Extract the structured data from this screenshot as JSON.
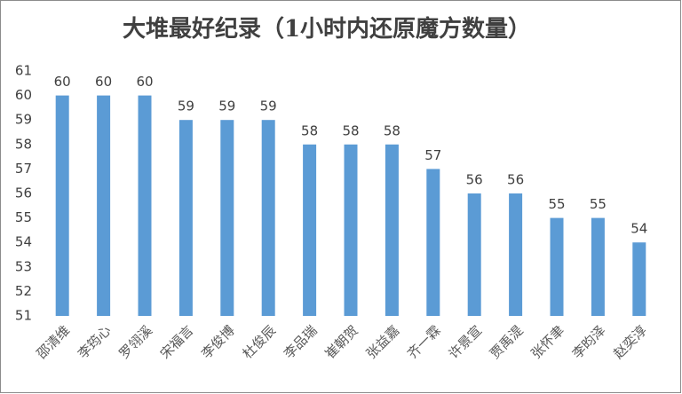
{
  "chart_data": {
    "type": "bar",
    "title": "大堆最好纪录（1小时内还原魔方数量）",
    "categories": [
      "邵清维",
      "李筠心",
      "罗翎溪",
      "宋福言",
      "李俊博",
      "杜俊辰",
      "李品瑞",
      "崔朝贺",
      "张益嘉",
      "齐一霖",
      "许景宣",
      "贾禹湜",
      "张怀聿",
      "李昀泽",
      "赵奕淳"
    ],
    "values": [
      60,
      60,
      60,
      59,
      59,
      59,
      58,
      58,
      58,
      57,
      56,
      56,
      55,
      55,
      54
    ],
    "color": "#5b9bd5",
    "ylim": [
      51,
      61
    ],
    "yticks": [
      51,
      52,
      53,
      54,
      55,
      56,
      57,
      58,
      59,
      60,
      61
    ],
    "grid": false
  }
}
